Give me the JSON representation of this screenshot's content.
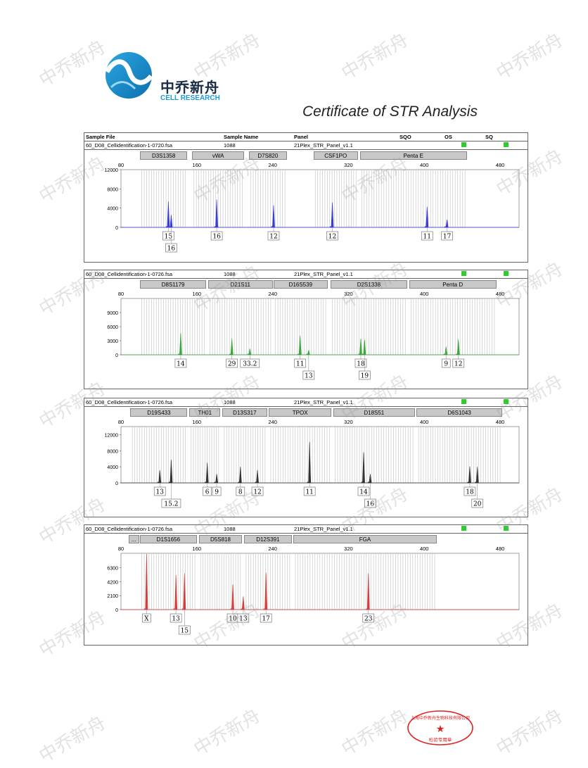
{
  "watermark": "中乔新舟",
  "brand": {
    "cn": "中乔新舟",
    "en": "CELL RESEARCH"
  },
  "title": "Certificate of STR Analysis",
  "headers": [
    "Sample File",
    "Sample Name",
    "Panel",
    "SQO",
    "OS",
    "SQ"
  ],
  "stamp_text": "检验专用章",
  "axis_ticks": [
    "80",
    "160",
    "240",
    "320",
    "400",
    "480"
  ],
  "panels": [
    {
      "file": "60_D08_Cellidentification-1-0720.fsa",
      "name": "1088",
      "panel": "21Plex_STR_Panel_v1.1",
      "color": "#3a3adb",
      "yticks": [
        "12000",
        "8000",
        "4000",
        "0"
      ],
      "ymax": 12000,
      "loci": [
        {
          "label": "D3S1358",
          "s": 100,
          "e": 150
        },
        {
          "label": "vWA",
          "s": 155,
          "e": 210
        },
        {
          "label": "D7S820",
          "s": 215,
          "e": 255
        },
        {
          "label": "CSF1PO",
          "s": 283,
          "e": 330
        },
        {
          "label": "Penta E",
          "s": 332,
          "e": 445
        }
      ],
      "peaks": [
        {
          "x": 130,
          "h": 5400
        },
        {
          "x": 133,
          "h": 2600
        },
        {
          "x": 181,
          "h": 5800
        },
        {
          "x": 241,
          "h": 4600
        },
        {
          "x": 303,
          "h": 5200
        },
        {
          "x": 403,
          "h": 4300
        },
        {
          "x": 424,
          "h": 1600
        }
      ],
      "alleles": [
        {
          "label": "15",
          "x": 130,
          "row": 0
        },
        {
          "label": "16",
          "x": 133,
          "row": 1
        },
        {
          "label": "16",
          "x": 181,
          "row": 0
        },
        {
          "label": "12",
          "x": 241,
          "row": 0
        },
        {
          "label": "12",
          "x": 303,
          "row": 0
        },
        {
          "label": "11",
          "x": 403,
          "row": 0
        },
        {
          "label": "17",
          "x": 424,
          "row": 0
        }
      ]
    },
    {
      "file": "60_D08_Cellidentification-1-0726.fsa",
      "name": "1088",
      "panel": "21Plex_STR_Panel_v1.1",
      "color": "#3aa63a",
      "yticks": [
        "9000",
        "6000",
        "3000",
        "0"
      ],
      "ymax": 12000,
      "loci": [
        {
          "label": "D8S1179",
          "s": 100,
          "e": 170
        },
        {
          "label": "D21S11",
          "s": 172,
          "e": 240
        },
        {
          "label": "D16S539",
          "s": 241,
          "e": 298
        },
        {
          "label": "D2S1338",
          "s": 301,
          "e": 382
        },
        {
          "label": "Penta D",
          "s": 384,
          "e": 476
        }
      ],
      "peaks": [
        {
          "x": 143,
          "h": 4600
        },
        {
          "x": 197,
          "h": 3500
        },
        {
          "x": 216,
          "h": 1300
        },
        {
          "x": 269,
          "h": 4100
        },
        {
          "x": 278,
          "h": 1000
        },
        {
          "x": 333,
          "h": 3400
        },
        {
          "x": 337,
          "h": 3200
        },
        {
          "x": 423,
          "h": 1700
        },
        {
          "x": 436,
          "h": 3300
        }
      ],
      "alleles": [
        {
          "label": "14",
          "x": 143,
          "row": 0
        },
        {
          "label": "29",
          "x": 197,
          "row": 0
        },
        {
          "label": "33.2",
          "x": 216,
          "row": 0
        },
        {
          "label": "11",
          "x": 269,
          "row": 0
        },
        {
          "label": "13",
          "x": 278,
          "row": 1
        },
        {
          "label": "18",
          "x": 333,
          "row": 0
        },
        {
          "label": "19",
          "x": 337,
          "row": 1
        },
        {
          "label": "9",
          "x": 423,
          "row": 0
        },
        {
          "label": "12",
          "x": 436,
          "row": 0
        }
      ]
    },
    {
      "file": "60_D08_Cellidentification-1-0726.fsa",
      "name": "1088",
      "panel": "21Plex_STR_Panel_v1.1",
      "color": "#333333",
      "yticks": [
        "12000",
        "8000",
        "4000",
        "0"
      ],
      "ymax": 14000,
      "loci": [
        {
          "label": "D19S433",
          "s": 90,
          "e": 150
        },
        {
          "label": "TH01",
          "s": 152,
          "e": 185
        },
        {
          "label": "D13S317",
          "s": 187,
          "e": 234
        },
        {
          "label": "TPOX",
          "s": 236,
          "e": 302
        },
        {
          "label": "D18S51",
          "s": 304,
          "e": 390
        },
        {
          "label": "D6S1043",
          "s": 392,
          "e": 482
        }
      ],
      "peaks": [
        {
          "x": 121,
          "h": 3200
        },
        {
          "x": 133,
          "h": 5800
        },
        {
          "x": 171,
          "h": 5000
        },
        {
          "x": 181,
          "h": 2200
        },
        {
          "x": 206,
          "h": 4000
        },
        {
          "x": 224,
          "h": 3200
        },
        {
          "x": 279,
          "h": 10200
        },
        {
          "x": 336,
          "h": 7600
        },
        {
          "x": 343,
          "h": 2200
        },
        {
          "x": 448,
          "h": 4100
        },
        {
          "x": 456,
          "h": 4000
        }
      ],
      "alleles": [
        {
          "label": "13",
          "x": 121,
          "row": 0
        },
        {
          "label": "15.2",
          "x": 133,
          "row": 1
        },
        {
          "label": "6",
          "x": 171,
          "row": 0
        },
        {
          "label": "9",
          "x": 181,
          "row": 0
        },
        {
          "label": "8",
          "x": 206,
          "row": 0
        },
        {
          "label": "12",
          "x": 224,
          "row": 0
        },
        {
          "label": "11",
          "x": 279,
          "row": 0
        },
        {
          "label": "14",
          "x": 336,
          "row": 0
        },
        {
          "label": "16",
          "x": 343,
          "row": 1
        },
        {
          "label": "18",
          "x": 448,
          "row": 0
        },
        {
          "label": "20",
          "x": 456,
          "row": 1
        }
      ]
    },
    {
      "file": "60_D08_Cellidentification-1-0726.fsa",
      "name": "1088",
      "panel": "21Plex_STR_Panel_v1.1",
      "color": "#d93b3b",
      "yticks": [
        "6300",
        "4200",
        "2100",
        "0"
      ],
      "ymax": 8500,
      "loci": [
        {
          "label": "...",
          "s": 88,
          "e": 99
        },
        {
          "label": "D1S1656",
          "s": 100,
          "e": 160
        },
        {
          "label": "D5S818",
          "s": 162,
          "e": 208
        },
        {
          "label": "D12S391",
          "s": 210,
          "e": 260
        },
        {
          "label": "FGA",
          "s": 262,
          "e": 413
        }
      ],
      "peaks": [
        {
          "x": 107,
          "h": 8400
        },
        {
          "x": 138,
          "h": 5200
        },
        {
          "x": 147,
          "h": 5500
        },
        {
          "x": 198,
          "h": 3800
        },
        {
          "x": 209,
          "h": 2000
        },
        {
          "x": 233,
          "h": 5600
        },
        {
          "x": 341,
          "h": 5500
        }
      ],
      "alleles": [
        {
          "label": "X",
          "x": 107,
          "row": 0
        },
        {
          "label": "13",
          "x": 138,
          "row": 0
        },
        {
          "label": "15",
          "x": 147,
          "row": 1
        },
        {
          "label": "10",
          "x": 198,
          "row": 0
        },
        {
          "label": "13",
          "x": 209,
          "row": 0
        },
        {
          "label": "17",
          "x": 233,
          "row": 0
        },
        {
          "label": "23",
          "x": 341,
          "row": 0
        }
      ]
    }
  ]
}
